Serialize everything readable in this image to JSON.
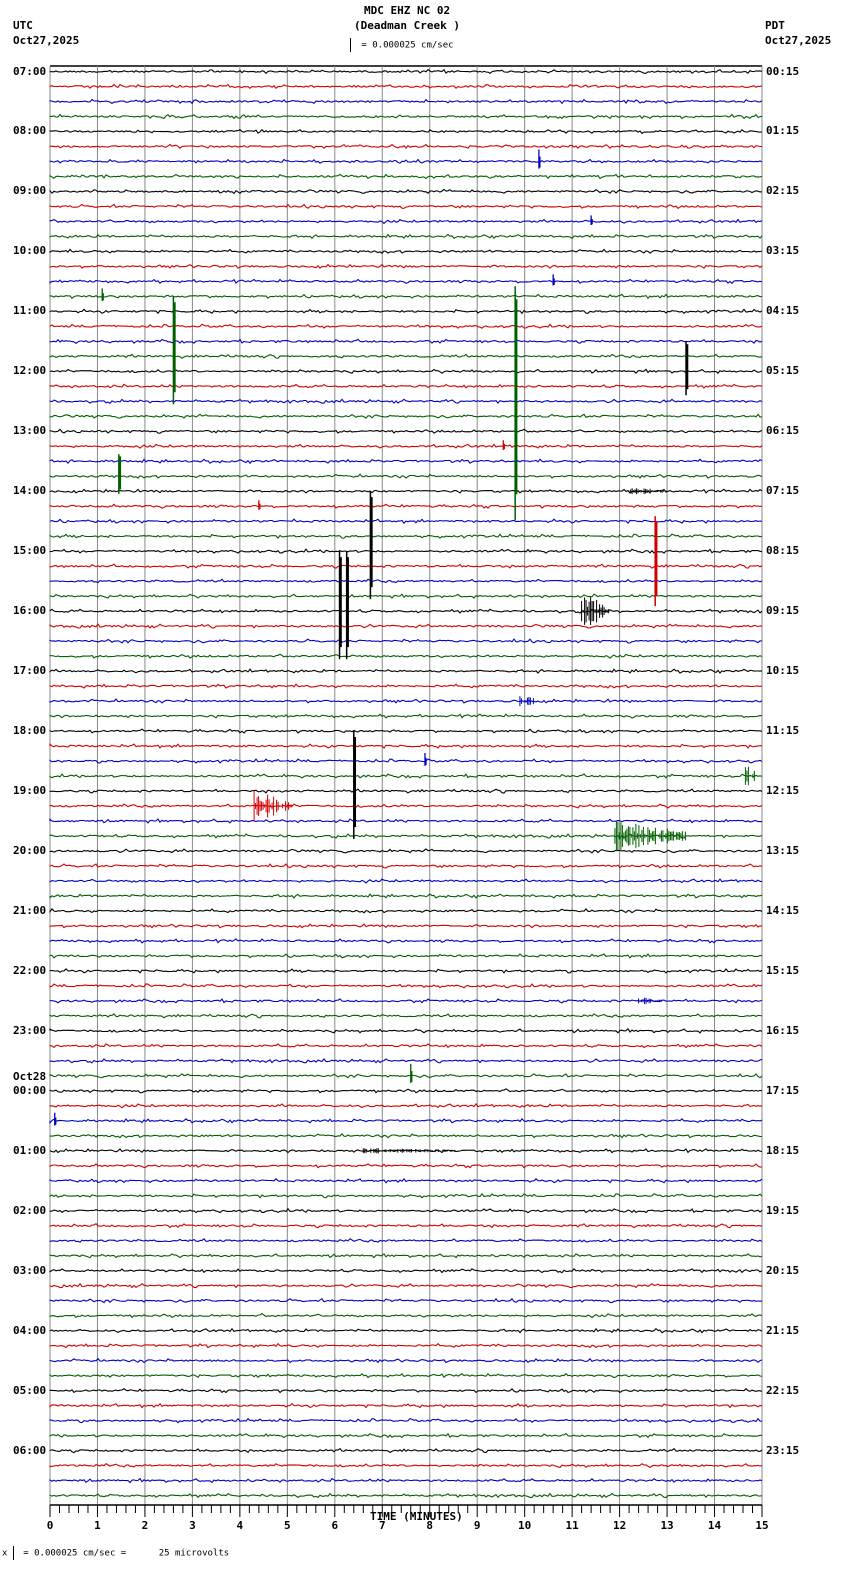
{
  "header": {
    "station": "MDC EHZ NC 02",
    "location": "(Deadman Creek )",
    "left_tz": "UTC",
    "left_date": "Oct27,2025",
    "right_tz": "PDT",
    "right_date": "Oct27,2025",
    "scale_text": "= 0.000025 cm/sec"
  },
  "footer": {
    "scale_text": "= 0.000025 cm/sec =      25 microvolts",
    "prefix": "x"
  },
  "chart_data": {
    "type": "line",
    "title": "MDC EHZ NC 02 (Deadman Creek )",
    "xlabel": "TIME (MINUTES)",
    "ylabel": "",
    "xlim": [
      0,
      15
    ],
    "x_ticks": [
      "0",
      "1",
      "2",
      "3",
      "4",
      "5",
      "6",
      "7",
      "8",
      "9",
      "10",
      "11",
      "12",
      "13",
      "14",
      "15"
    ],
    "grid": true,
    "traces_per_hour": 4,
    "trace_colors": [
      "#000000",
      "#d00000",
      "#0000c0",
      "#006000"
    ],
    "left_labels_utc": [
      "07:00",
      "08:00",
      "09:00",
      "10:00",
      "11:00",
      "12:00",
      "13:00",
      "14:00",
      "15:00",
      "16:00",
      "17:00",
      "18:00",
      "19:00",
      "20:00",
      "21:00",
      "22:00",
      "23:00",
      "00:00",
      "01:00",
      "02:00",
      "03:00",
      "04:00",
      "05:00",
      "06:00"
    ],
    "date_change_label": {
      "text": "Oct28",
      "before": "00:00"
    },
    "right_labels_pdt": [
      "00:15",
      "01:15",
      "02:15",
      "03:15",
      "04:15",
      "05:15",
      "06:15",
      "07:15",
      "08:15",
      "09:15",
      "10:15",
      "11:15",
      "12:15",
      "13:15",
      "14:15",
      "15:15",
      "16:15",
      "17:15",
      "18:15",
      "19:15",
      "20:15",
      "21:15",
      "22:15",
      "23:15"
    ],
    "events": [
      {
        "hour_index": 1,
        "trace": 2,
        "minute": 10.3,
        "amp": 12,
        "type": "spike"
      },
      {
        "hour_index": 2,
        "trace": 2,
        "minute": 11.4,
        "amp": 6,
        "type": "spike"
      },
      {
        "hour_index": 3,
        "trace": 2,
        "minute": 10.6,
        "amp": 7,
        "type": "spike"
      },
      {
        "hour_index": 3,
        "trace": 3,
        "minute": 1.1,
        "amp": 8,
        "type": "spike"
      },
      {
        "hour_index": 4,
        "trace": 3,
        "minute": 2.6,
        "amp": 60,
        "type": "pulse"
      },
      {
        "hour_index": 5,
        "trace": 0,
        "minute": 13.4,
        "amp": 30,
        "type": "pulse"
      },
      {
        "hour_index": 5,
        "trace": 3,
        "minute": 9.8,
        "amp": 130,
        "type": "pulse"
      },
      {
        "hour_index": 6,
        "trace": 1,
        "minute": 9.55,
        "amp": 6,
        "type": "spike"
      },
      {
        "hour_index": 6,
        "trace": 3,
        "minute": 1.45,
        "amp": 22,
        "type": "pulse"
      },
      {
        "hour_index": 7,
        "trace": 0,
        "minute": 12.2,
        "amp": 4,
        "type": "burst",
        "duration": 0.8
      },
      {
        "hour_index": 7,
        "trace": 1,
        "minute": 4.4,
        "amp": 6,
        "type": "spike"
      },
      {
        "hour_index": 8,
        "trace": 1,
        "minute": 12.75,
        "amp": 50,
        "type": "pulse"
      },
      {
        "hour_index": 8,
        "trace": 0,
        "minute": 6.75,
        "amp": 60,
        "type": "pulse"
      },
      {
        "hour_index": 9,
        "trace": 0,
        "minute": 11.2,
        "amp": 18,
        "type": "burst",
        "duration": 0.6
      },
      {
        "hour_index": 9,
        "trace": 0,
        "minute": 6.1,
        "amp": 60,
        "type": "pulse"
      },
      {
        "hour_index": 9,
        "trace": 0,
        "minute": 6.25,
        "amp": 60,
        "type": "pulse"
      },
      {
        "hour_index": 10,
        "trace": 2,
        "minute": 9.9,
        "amp": 8,
        "type": "burst",
        "duration": 0.3
      },
      {
        "hour_index": 11,
        "trace": 2,
        "minute": 7.9,
        "amp": 8,
        "type": "spike"
      },
      {
        "hour_index": 11,
        "trace": 3,
        "minute": 14.65,
        "amp": 14,
        "type": "burst",
        "duration": 0.2
      },
      {
        "hour_index": 12,
        "trace": 1,
        "minute": 4.3,
        "amp": 16,
        "type": "burst",
        "duration": 0.8
      },
      {
        "hour_index": 12,
        "trace": 0,
        "minute": 6.4,
        "amp": 60,
        "type": "pulse"
      },
      {
        "hour_index": 12,
        "trace": 3,
        "minute": 11.9,
        "amp": 16,
        "type": "burst",
        "duration": 1.5
      },
      {
        "hour_index": 15,
        "trace": 2,
        "minute": 12.4,
        "amp": 4,
        "type": "burst",
        "duration": 0.5
      },
      {
        "hour_index": 16,
        "trace": 3,
        "minute": 7.6,
        "amp": 12,
        "type": "spike"
      },
      {
        "hour_index": 17,
        "trace": 2,
        "minute": 0.1,
        "amp": 8,
        "type": "spike"
      },
      {
        "hour_index": 18,
        "trace": 0,
        "minute": 6.6,
        "amp": 3,
        "type": "burst",
        "duration": 2.0
      }
    ]
  }
}
